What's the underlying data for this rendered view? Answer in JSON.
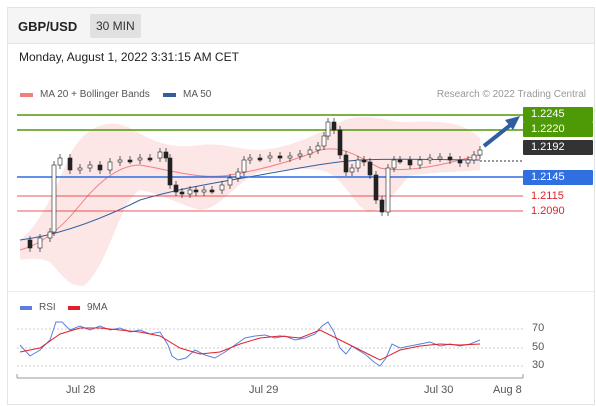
{
  "header": {
    "symbol": "GBP/USD",
    "interval": "30 MIN"
  },
  "datetime": "Monday, August 1, 2022 3:31:15 AM CET",
  "legend": {
    "ma20": {
      "label": "MA 20 + Bollinger Bands",
      "color": "#f08080"
    },
    "ma50": {
      "label": "MA 50",
      "color": "#2f5f9e"
    }
  },
  "credit": "Research © 2022 Trading Central",
  "levels": [
    {
      "price": "1.2245",
      "kind": "resistance",
      "color": "#4e9a06"
    },
    {
      "price": "1.2220",
      "kind": "resistance",
      "color": "#4e9a06"
    },
    {
      "price": "1.2192",
      "kind": "current",
      "color": "#333333"
    },
    {
      "price": "1.2145",
      "kind": "pivot",
      "color": "#2f6fe0"
    },
    {
      "price": "1.2115",
      "kind": "support",
      "color": "#e0202a"
    },
    {
      "price": "1.2090",
      "kind": "support",
      "color": "#e0202a"
    }
  ],
  "rsi_legend": {
    "rsi": {
      "label": "RSI",
      "color": "#5b7fdc"
    },
    "ma9": {
      "label": "9MA",
      "color": "#e0202a"
    }
  },
  "rsi_levels": [
    "70",
    "50",
    "30"
  ],
  "x_axis": [
    "Jul 28",
    "Jul 29",
    "Jul 30",
    "Aug 8"
  ]
}
